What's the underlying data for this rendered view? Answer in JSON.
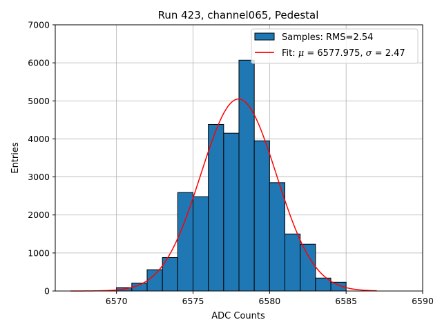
{
  "chart_data": {
    "type": "bar",
    "title": "Run 423, channel065, Pedestal",
    "xlabel": "ADC Counts",
    "ylabel": "Entries",
    "xlim": [
      6566,
      6590
    ],
    "ylim": [
      0,
      7000
    ],
    "xticks": [
      6570,
      6575,
      6580,
      6585,
      6590
    ],
    "yticks": [
      0,
      1000,
      2000,
      3000,
      4000,
      5000,
      6000,
      7000
    ],
    "grid": true,
    "legend_position": "top-right",
    "bar_color": "#1f77b4",
    "fit_color": "#ff0000",
    "histogram": {
      "name": "Samples: RMS=2.54",
      "bin_width": 1,
      "bin_left_edges": [
        6570,
        6571,
        6572,
        6573,
        6574,
        6575,
        6576,
        6577,
        6578,
        6579,
        6580,
        6581,
        6582,
        6583,
        6584
      ],
      "values": [
        90,
        210,
        560,
        880,
        2590,
        2480,
        4380,
        4150,
        6070,
        3950,
        2850,
        1500,
        1230,
        340,
        230
      ]
    },
    "fit": {
      "name_prefix": "Fit: ",
      "mu_symbol": "μ",
      "mu_text": " = 6577.975, ",
      "sigma_symbol": "σ",
      "sigma_text": " = 2.47",
      "mu": 6577.975,
      "sigma": 2.47,
      "amplitude": 5050,
      "x_range": [
        6567,
        6587
      ]
    }
  }
}
